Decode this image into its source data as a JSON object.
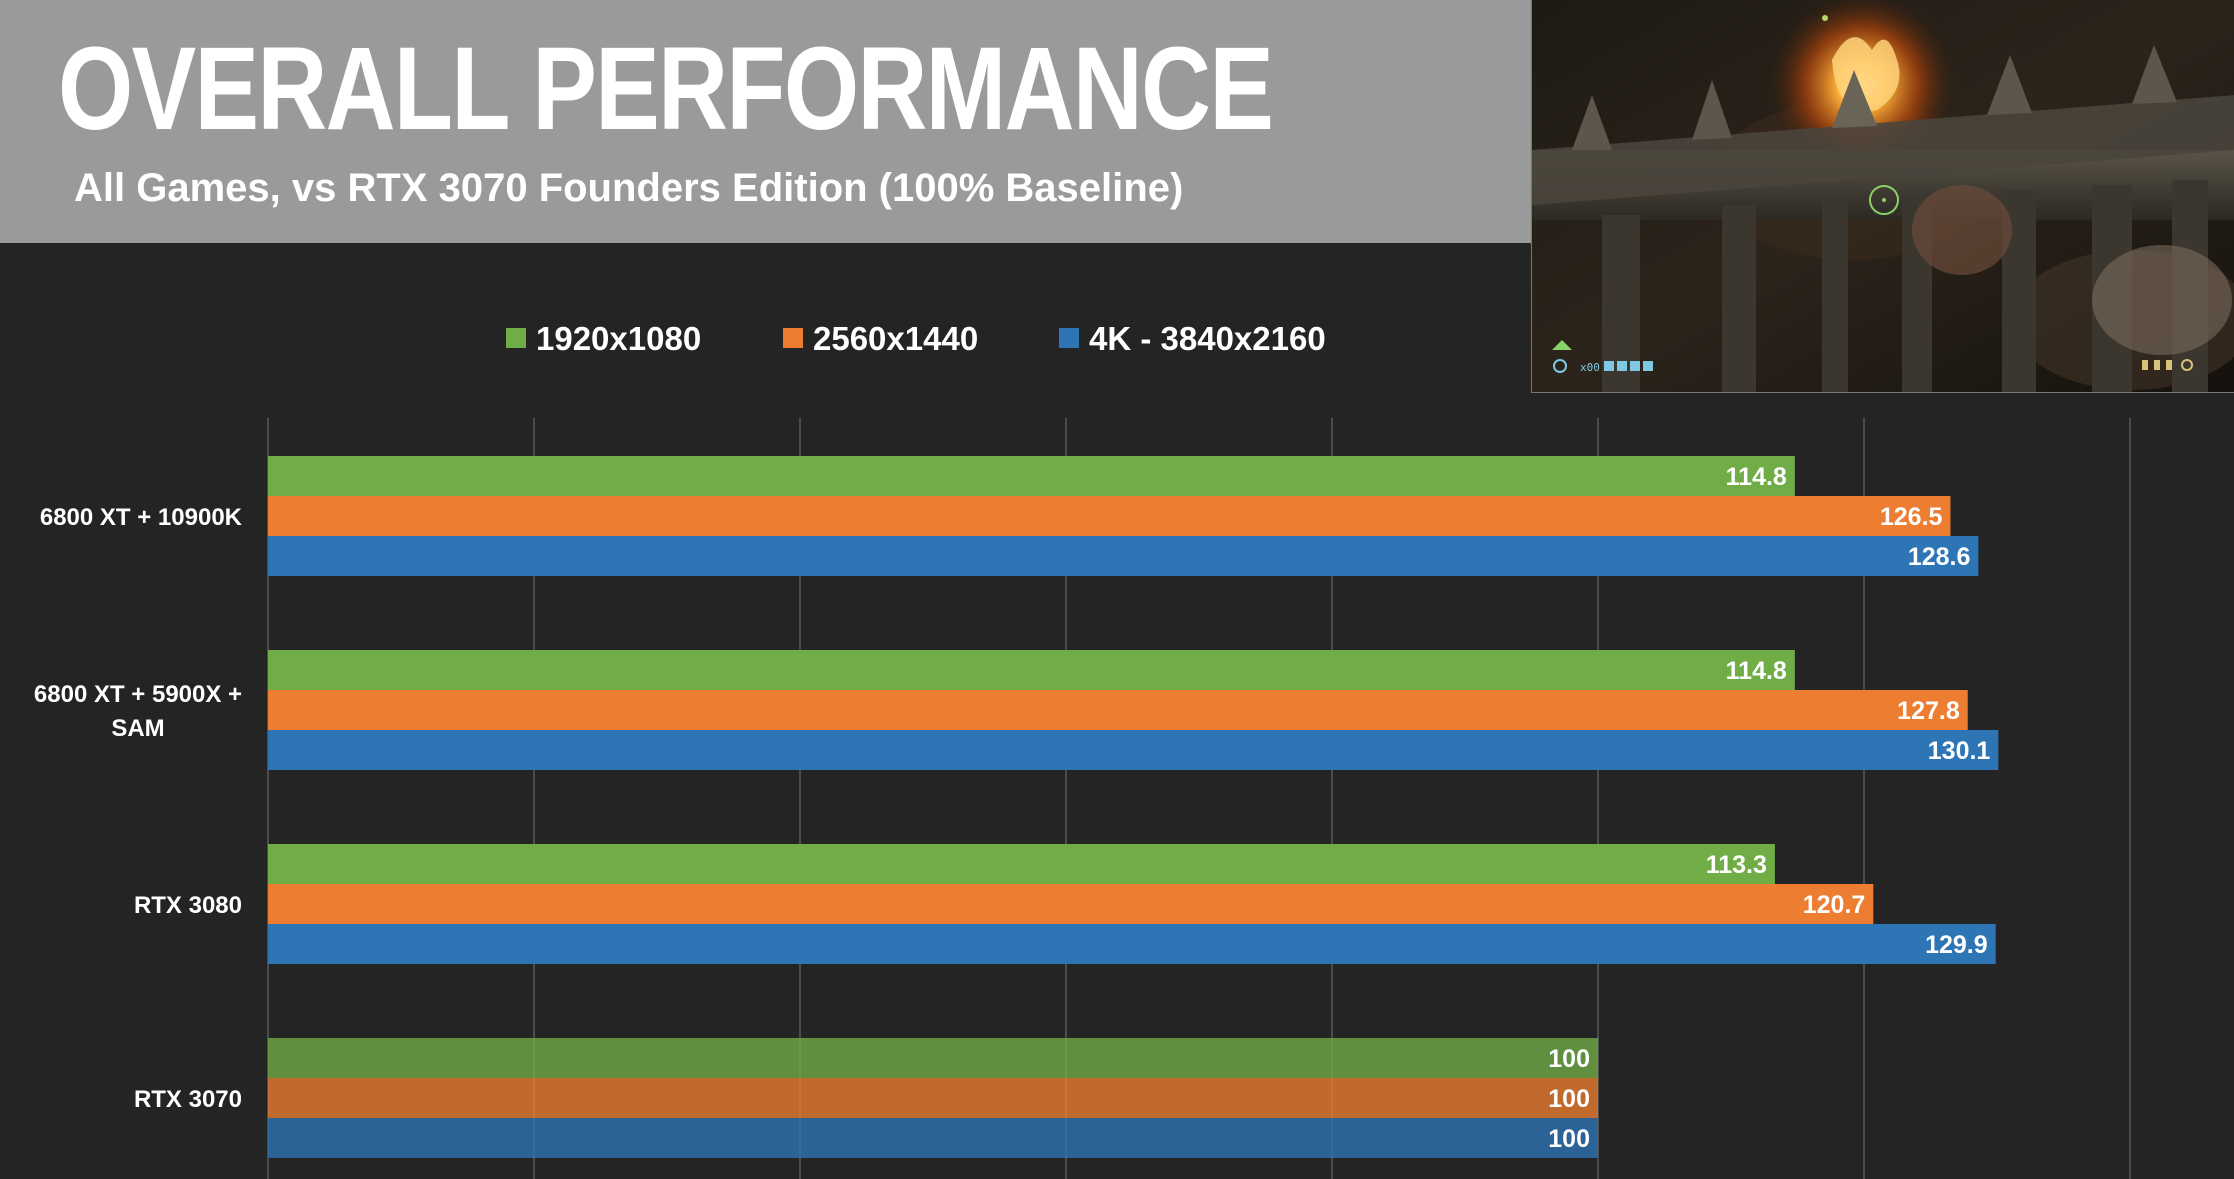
{
  "header": {
    "title": "OVERALL PERFORMANCE",
    "subtitle": "All Games, vs RTX 3070 Founders Edition (100% Baseline)"
  },
  "gameplay_image": {
    "hud_text": "x00"
  },
  "colors": {
    "background": "#242424",
    "header_band": "#9a9a9a",
    "gridline": "#5a5a5a"
  },
  "chart_data": {
    "type": "bar",
    "orientation": "horizontal",
    "title": "OVERALL PERFORMANCE",
    "subtitle": "All Games, vs RTX 3070 Founders Edition (100% Baseline)",
    "categories": [
      "6800 XT + 10900K",
      "6800 XT + 5900X + SAM",
      "RTX 3080",
      "RTX 3070"
    ],
    "category_lines": [
      [
        "6800 XT + 10900K"
      ],
      [
        "6800 XT + 5900X +",
        "SAM"
      ],
      [
        "RTX 3080"
      ],
      [
        "RTX 3070"
      ]
    ],
    "series": [
      {
        "name": "1920x1080",
        "color": "#70ad47",
        "values": [
          114.8,
          114.8,
          113.3,
          100
        ]
      },
      {
        "name": "2560x1440",
        "color": "#ed7d31",
        "values": [
          126.5,
          127.8,
          120.7,
          100
        ]
      },
      {
        "name": "4K - 3840x2160",
        "color": "#2e75b6",
        "values": [
          128.6,
          130.1,
          129.9,
          100
        ]
      }
    ],
    "xlim": [
      0,
      140
    ],
    "grid_step": 20,
    "grid": true,
    "legend_position": "top",
    "xlabel": "",
    "ylabel": ""
  }
}
